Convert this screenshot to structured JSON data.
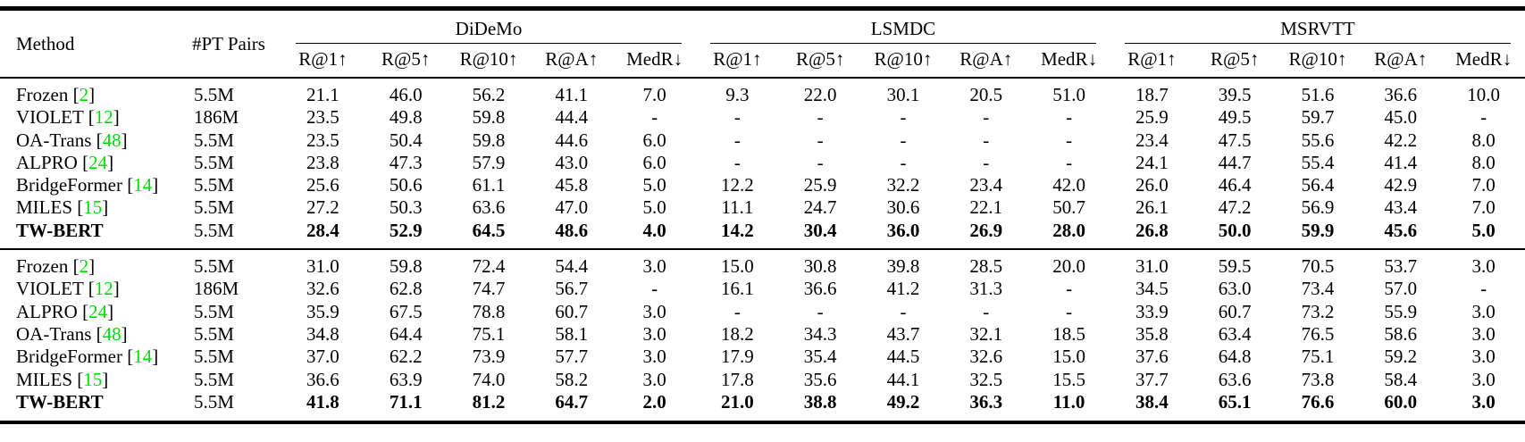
{
  "colors": {
    "citation_number": "#00de00",
    "rule": "#000000",
    "background": "#ffffff"
  },
  "chart_data": {
    "type": "table",
    "leading_headers": [
      "Method",
      "#PT Pairs"
    ],
    "column_groups": [
      "DiDeMo",
      "LSMDC",
      "MSRVTT"
    ],
    "metrics": [
      "R@1↑",
      "R@5↑",
      "R@10↑",
      "R@A↑",
      "MedR↓"
    ],
    "blocks": [
      {
        "rows": [
          {
            "method": "Frozen",
            "cite": "2",
            "pt": "5.5M",
            "bold": false,
            "values": [
              "21.1",
              "46.0",
              "56.2",
              "41.1",
              "7.0",
              "9.3",
              "22.0",
              "30.1",
              "20.5",
              "51.0",
              "18.7",
              "39.5",
              "51.6",
              "36.6",
              "10.0"
            ]
          },
          {
            "method": "VIOLET",
            "cite": "12",
            "pt": "186M",
            "bold": false,
            "values": [
              "23.5",
              "49.8",
              "59.8",
              "44.4",
              "-",
              "-",
              "-",
              "-",
              "-",
              "-",
              "25.9",
              "49.5",
              "59.7",
              "45.0",
              "-"
            ]
          },
          {
            "method": "OA-Trans",
            "cite": "48",
            "pt": "5.5M",
            "bold": false,
            "values": [
              "23.5",
              "50.4",
              "59.8",
              "44.6",
              "6.0",
              "-",
              "-",
              "-",
              "-",
              "-",
              "23.4",
              "47.5",
              "55.6",
              "42.2",
              "8.0"
            ]
          },
          {
            "method": "ALPRO",
            "cite": "24",
            "pt": "5.5M",
            "bold": false,
            "values": [
              "23.8",
              "47.3",
              "57.9",
              "43.0",
              "6.0",
              "-",
              "-",
              "-",
              "-",
              "-",
              "24.1",
              "44.7",
              "55.4",
              "41.4",
              "8.0"
            ]
          },
          {
            "method": "BridgeFormer",
            "cite": "14",
            "pt": "5.5M",
            "bold": false,
            "values": [
              "25.6",
              "50.6",
              "61.1",
              "45.8",
              "5.0",
              "12.2",
              "25.9",
              "32.2",
              "23.4",
              "42.0",
              "26.0",
              "46.4",
              "56.4",
              "42.9",
              "7.0"
            ]
          },
          {
            "method": "MILES",
            "cite": "15",
            "pt": "5.5M",
            "bold": false,
            "values": [
              "27.2",
              "50.3",
              "63.6",
              "47.0",
              "5.0",
              "11.1",
              "24.7",
              "30.6",
              "22.1",
              "50.7",
              "26.1",
              "47.2",
              "56.9",
              "43.4",
              "7.0"
            ]
          },
          {
            "method": "TW-BERT",
            "cite": "",
            "pt": "5.5M",
            "bold": true,
            "values": [
              "28.4",
              "52.9",
              "64.5",
              "48.6",
              "4.0",
              "14.2",
              "30.4",
              "36.0",
              "26.9",
              "28.0",
              "26.8",
              "50.0",
              "59.9",
              "45.6",
              "5.0"
            ]
          }
        ]
      },
      {
        "rows": [
          {
            "method": "Frozen",
            "cite": "2",
            "pt": "5.5M",
            "bold": false,
            "values": [
              "31.0",
              "59.8",
              "72.4",
              "54.4",
              "3.0",
              "15.0",
              "30.8",
              "39.8",
              "28.5",
              "20.0",
              "31.0",
              "59.5",
              "70.5",
              "53.7",
              "3.0"
            ]
          },
          {
            "method": "VIOLET",
            "cite": "12",
            "pt": "186M",
            "bold": false,
            "values": [
              "32.6",
              "62.8",
              "74.7",
              "56.7",
              "-",
              "16.1",
              "36.6",
              "41.2",
              "31.3",
              "-",
              "34.5",
              "63.0",
              "73.4",
              "57.0",
              "-"
            ]
          },
          {
            "method": "ALPRO",
            "cite": "24",
            "pt": "5.5M",
            "bold": false,
            "values": [
              "35.9",
              "67.5",
              "78.8",
              "60.7",
              "3.0",
              "-",
              "-",
              "-",
              "-",
              "-",
              "33.9",
              "60.7",
              "73.2",
              "55.9",
              "3.0"
            ]
          },
          {
            "method": "OA-Trans",
            "cite": "48",
            "pt": "5.5M",
            "bold": false,
            "values": [
              "34.8",
              "64.4",
              "75.1",
              "58.1",
              "3.0",
              "18.2",
              "34.3",
              "43.7",
              "32.1",
              "18.5",
              "35.8",
              "63.4",
              "76.5",
              "58.6",
              "3.0"
            ]
          },
          {
            "method": "BridgeFormer",
            "cite": "14",
            "pt": "5.5M",
            "bold": false,
            "values": [
              "37.0",
              "62.2",
              "73.9",
              "57.7",
              "3.0",
              "17.9",
              "35.4",
              "44.5",
              "32.6",
              "15.0",
              "37.6",
              "64.8",
              "75.1",
              "59.2",
              "3.0"
            ]
          },
          {
            "method": "MILES",
            "cite": "15",
            "pt": "5.5M",
            "bold": false,
            "values": [
              "36.6",
              "63.9",
              "74.0",
              "58.2",
              "3.0",
              "17.8",
              "35.6",
              "44.1",
              "32.5",
              "15.5",
              "37.7",
              "63.6",
              "73.8",
              "58.4",
              "3.0"
            ]
          },
          {
            "method": "TW-BERT",
            "cite": "",
            "pt": "5.5M",
            "bold": true,
            "values": [
              "41.8",
              "71.1",
              "81.2",
              "64.7",
              "2.0",
              "21.0",
              "38.8",
              "49.2",
              "36.3",
              "11.0",
              "38.4",
              "65.1",
              "76.6",
              "60.0",
              "3.0"
            ]
          }
        ]
      }
    ]
  }
}
